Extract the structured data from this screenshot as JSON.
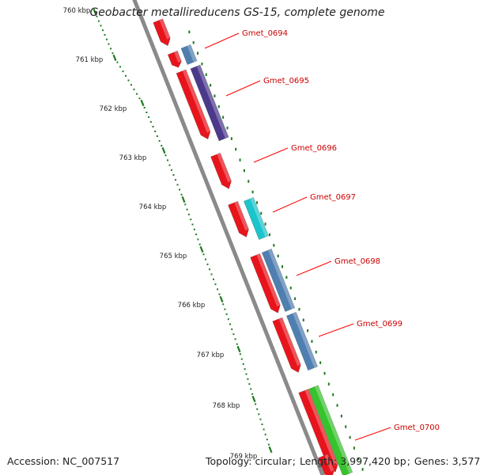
{
  "title": "Geobacter metallireducens GS-15, complete genome",
  "footer": {
    "accession": "Accession: NC_007517",
    "topology": "Topology: circular",
    "length": "Length: 3,997,420 bp",
    "genes": "Genes: 3,577"
  },
  "ruler": {
    "unit": "kbp",
    "labels": [
      "760 kbp",
      "761 kbp",
      "762 kbp",
      "763 kbp",
      "764 kbp",
      "765 kbp",
      "766 kbp",
      "767 kbp",
      "768 kbp",
      "769 kbp"
    ]
  },
  "colors": {
    "backbone": "#8a8a8a",
    "ruler_tick": "#1f7a1f",
    "label_text": "#cc0000",
    "label_line": "#ff0000",
    "orf_red": "#e8141c",
    "blue": "#4f7fb0",
    "purple": "#4b3a8c",
    "cyan": "#1cc4cc",
    "green": "#38c22e"
  },
  "features": [
    {
      "name": "Gmet_0694",
      "color": "#4f7fb0"
    },
    {
      "name": "Gmet_0695",
      "color": "#4b3a8c"
    },
    {
      "name": "Gmet_0696",
      "color": "#e8141c"
    },
    {
      "name": "Gmet_0697",
      "color": "#1cc4cc"
    },
    {
      "name": "Gmet_0698",
      "color": "#4f7fb0"
    },
    {
      "name": "Gmet_0699",
      "color": "#4f7fb0"
    },
    {
      "name": "Gmet_0700",
      "color": "#38c22e"
    }
  ]
}
